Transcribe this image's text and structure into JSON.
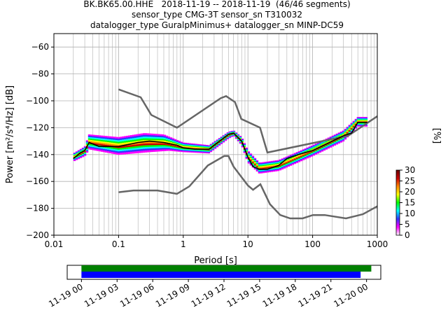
{
  "titles": {
    "line1": "BK.BK65.00.HHE   2018-11-19 -- 2018-11-19  (46/46 segments)",
    "line2": "sensor_type CMG-3T sensor_sn T310032",
    "line3": "datalogger_type GuralpMinimus+ datalogger_sn MINP-DC59"
  },
  "colorbar": {
    "label": "[%]",
    "ticks": [
      "0",
      "5",
      "10",
      "15",
      "20",
      "25",
      "30"
    ],
    "range": [
      0,
      30
    ],
    "colors": [
      "#ffffff",
      "#ff00ff",
      "#3333ff",
      "#00ffff",
      "#00ff00",
      "#ffff00",
      "#ff8800",
      "#cc0000",
      "#660000"
    ]
  },
  "chart_data": [
    {
      "type": "heatmap",
      "xscale": "log",
      "xlabel": "Period [s]",
      "ylabel": "Power [m²/s⁴/Hz] [dB]",
      "xlim": [
        0.01,
        1000
      ],
      "ylim": [
        -200,
        -50
      ],
      "xtick_labels": [
        "0.01",
        "0.1",
        "1",
        "10",
        "100",
        "1000"
      ],
      "xtick_values": [
        0.01,
        0.1,
        1,
        10,
        100,
        1000
      ],
      "ytick_values": [
        -200,
        -180,
        -160,
        -140,
        -120,
        -100,
        -80,
        -60
      ],
      "ytick_labels": [
        "−200",
        "−180",
        "−160",
        "−140",
        "−120",
        "−100",
        "−80",
        "−60"
      ],
      "grid": true,
      "series": [
        {
          "name": "",
          "role": "noise-model-high",
          "color": "#666666",
          "points": [
            [
              0.1,
              -91.5
            ],
            [
              0.22,
              -97.4
            ],
            [
              0.32,
              -110.5
            ],
            [
              0.8,
              -120
            ],
            [
              3.8,
              -98
            ],
            [
              4.6,
              -96.5
            ],
            [
              6.3,
              -101
            ],
            [
              7.9,
              -113.5
            ],
            [
              15.4,
              -120
            ],
            [
              20,
              -138.5
            ],
            [
              354.8,
              -126
            ],
            [
              1000,
              -111.5
            ]
          ]
        },
        {
          "name": "",
          "role": "noise-model-low",
          "color": "#666666",
          "points": [
            [
              0.1,
              -168
            ],
            [
              0.17,
              -166.7
            ],
            [
              0.4,
              -166.7
            ],
            [
              0.8,
              -169.2
            ],
            [
              1.24,
              -163.7
            ],
            [
              2.4,
              -148.1
            ],
            [
              4.3,
              -141.1
            ],
            [
              5,
              -141.1
            ],
            [
              6,
              -149
            ],
            [
              10,
              -163
            ],
            [
              12,
              -166.2
            ],
            [
              15.6,
              -162.1
            ],
            [
              21.9,
              -177
            ],
            [
              31.6,
              -185
            ],
            [
              45,
              -187.5
            ],
            [
              70,
              -187.5
            ],
            [
              101,
              -185
            ],
            [
              154,
              -185
            ],
            [
              328,
              -187.5
            ],
            [
              600,
              -184.4
            ],
            [
              1000,
              -178.5
            ]
          ]
        },
        {
          "name": "",
          "role": "median-psd",
          "color": "#000000",
          "points": [
            [
              0.02,
              -143
            ],
            [
              0.025,
              -139
            ],
            [
              0.03,
              -137
            ],
            [
              0.035,
              -131
            ],
            [
              0.05,
              -134
            ],
            [
              0.1,
              -134
            ],
            [
              0.2,
              -131
            ],
            [
              0.3,
              -130
            ],
            [
              0.5,
              -131
            ],
            [
              0.8,
              -133
            ],
            [
              1,
              -135
            ],
            [
              1.5,
              -136
            ],
            [
              2.5,
              -136
            ],
            [
              3,
              -133
            ],
            [
              5,
              -125
            ],
            [
              6,
              -124
            ],
            [
              8,
              -130
            ],
            [
              10,
              -142
            ],
            [
              12,
              -149
            ],
            [
              15,
              -151
            ],
            [
              20,
              -151
            ],
            [
              30,
              -148
            ],
            [
              40,
              -143
            ],
            [
              60,
              -140
            ],
            [
              100,
              -137
            ],
            [
              200,
              -130
            ],
            [
              300,
              -126
            ],
            [
              400,
              -124
            ],
            [
              500,
              -116
            ],
            [
              700,
              -116
            ]
          ]
        },
        {
          "name": "",
          "role": "psd-density-band-upper",
          "color": "#00ff00",
          "points": [
            [
              0.02,
              -139
            ],
            [
              0.03,
              -134
            ],
            [
              0.035,
              -125
            ],
            [
              0.1,
              -127
            ],
            [
              0.25,
              -124
            ],
            [
              0.5,
              -125
            ],
            [
              1,
              -131
            ],
            [
              2.5,
              -133
            ],
            [
              5,
              -123
            ],
            [
              6,
              -122
            ],
            [
              8,
              -127
            ],
            [
              10,
              -137
            ],
            [
              15,
              -146
            ],
            [
              30,
              -144
            ],
            [
              100,
              -133
            ],
            [
              300,
              -122
            ],
            [
              500,
              -112
            ],
            [
              700,
              -112
            ]
          ]
        },
        {
          "name": "",
          "role": "psd-density-band-lower",
          "color": "#3333ff",
          "points": [
            [
              0.02,
              -145
            ],
            [
              0.03,
              -141
            ],
            [
              0.035,
              -136
            ],
            [
              0.1,
              -140
            ],
            [
              0.3,
              -138
            ],
            [
              0.6,
              -137
            ],
            [
              1,
              -138
            ],
            [
              2.5,
              -139
            ],
            [
              5,
              -128
            ],
            [
              6,
              -126
            ],
            [
              8,
              -133
            ],
            [
              10,
              -146
            ],
            [
              15,
              -154
            ],
            [
              30,
              -152
            ],
            [
              100,
              -141
            ],
            [
              300,
              -130
            ],
            [
              500,
              -119
            ],
            [
              700,
              -119
            ]
          ]
        }
      ]
    },
    {
      "type": "bar",
      "role": "data-coverage",
      "xlabel": "",
      "xtick_labels": [
        "11-19 00",
        "11-19 03",
        "11-19 06",
        "11-19 09",
        "11-19 12",
        "11-19 15",
        "11-19 18",
        "11-19 21",
        "11-20 00"
      ],
      "series": [
        {
          "name": "",
          "color": "#008000",
          "start_hour": 0,
          "end_hour": 24.4
        },
        {
          "name": "",
          "color": "#0000ff",
          "start_hour": 0,
          "end_hour": 23.5
        }
      ],
      "xlim_hours": [
        -1.2,
        25.2
      ]
    }
  ]
}
